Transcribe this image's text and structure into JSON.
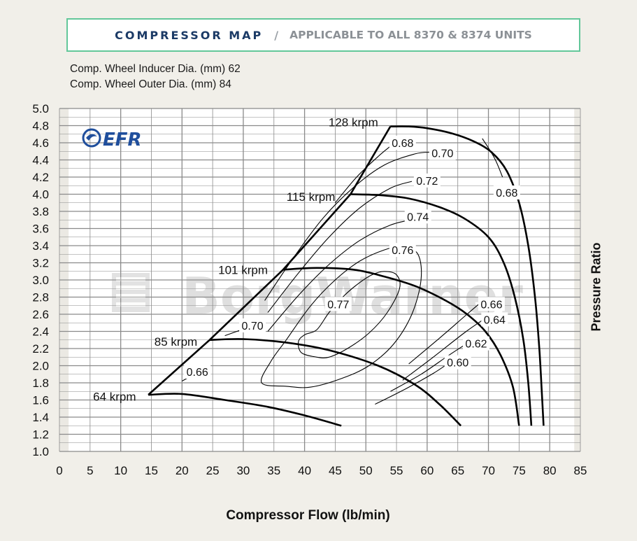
{
  "header": {
    "title": "COMPRESSOR MAP",
    "separator": "/",
    "subtitle": "APPLICABLE TO ALL 8370 & 8374 UNITS"
  },
  "specs": {
    "inducer": "Comp. Wheel Inducer Dia. (mm) 62",
    "outer": "Comp. Wheel Outer Dia. (mm) 84"
  },
  "logo": {
    "brand": "EFR",
    "watermark": "BorgWarner"
  },
  "colors": {
    "background": "#f1efe9",
    "header_border": "#63c79a",
    "title_blue": "#1b3a66",
    "logo_blue": "#1f4e9c",
    "grid": "#8a8a8a",
    "curve": "#000000"
  },
  "chart_data": {
    "type": "line",
    "xlabel": "Compressor Flow (lb/min)",
    "ylabel": "Pressure Ratio",
    "xlim": [
      0,
      85
    ],
    "ylim": [
      1.0,
      5.0
    ],
    "grid": true,
    "x_ticks": [
      0,
      5,
      10,
      15,
      20,
      25,
      30,
      35,
      40,
      45,
      50,
      55,
      60,
      65,
      70,
      75,
      80,
      85
    ],
    "y_ticks": [
      "1.0",
      "1.2",
      "1.4",
      "1.6",
      "1.8",
      "2.0",
      "2.2",
      "2.4",
      "2.6",
      "2.8",
      "3.0",
      "3.2",
      "3.4",
      "3.6",
      "3.8",
      "4.0",
      "4.2",
      "4.4",
      "4.6",
      "4.8",
      "5.0"
    ],
    "surge_line": [
      [
        14.5,
        1.66
      ],
      [
        24.5,
        2.3
      ],
      [
        36.5,
        3.12
      ],
      [
        47.5,
        4.0
      ],
      [
        54,
        4.79
      ]
    ],
    "speed_lines": [
      {
        "name": "64 krpm",
        "label_at": [
          12.5,
          1.64
        ],
        "points": [
          [
            14.5,
            1.66
          ],
          [
            20,
            1.67
          ],
          [
            27,
            1.6
          ],
          [
            34,
            1.52
          ],
          [
            40,
            1.42
          ],
          [
            46,
            1.3
          ]
        ]
      },
      {
        "name": "85 krpm",
        "label_at": [
          22.5,
          2.28
        ],
        "points": [
          [
            24.5,
            2.3
          ],
          [
            30,
            2.31
          ],
          [
            37,
            2.27
          ],
          [
            44,
            2.18
          ],
          [
            52,
            2.0
          ],
          [
            58,
            1.78
          ],
          [
            62,
            1.55
          ],
          [
            65.5,
            1.3
          ]
        ]
      },
      {
        "name": "101 krpm",
        "label_at": [
          34,
          3.12
        ],
        "points": [
          [
            36.5,
            3.12
          ],
          [
            42,
            3.14
          ],
          [
            48,
            3.12
          ],
          [
            53,
            3.04
          ],
          [
            58,
            2.93
          ],
          [
            63,
            2.76
          ],
          [
            66.5,
            2.6
          ],
          [
            69.5,
            2.4
          ],
          [
            72,
            2.12
          ],
          [
            74,
            1.75
          ],
          [
            75,
            1.3
          ]
        ]
      },
      {
        "name": "115 krpm",
        "label_at": [
          45,
          3.97
        ],
        "points": [
          [
            47.5,
            4.0
          ],
          [
            52,
            3.99
          ],
          [
            57,
            3.95
          ],
          [
            62,
            3.85
          ],
          [
            66,
            3.72
          ],
          [
            70,
            3.5
          ],
          [
            72.5,
            3.2
          ],
          [
            74.3,
            2.8
          ],
          [
            75.7,
            2.3
          ],
          [
            76.5,
            1.8
          ],
          [
            77,
            1.3
          ]
        ]
      },
      {
        "name": "128 krpm",
        "label_at": [
          52,
          4.84
        ],
        "points": [
          [
            54,
            4.79
          ],
          [
            57,
            4.79
          ],
          [
            60,
            4.77
          ],
          [
            64,
            4.71
          ],
          [
            67.5,
            4.62
          ],
          [
            70.5,
            4.49
          ],
          [
            73,
            4.27
          ],
          [
            75,
            3.9
          ],
          [
            76.5,
            3.4
          ],
          [
            77.6,
            2.8
          ],
          [
            78.3,
            2.2
          ],
          [
            78.7,
            1.7
          ],
          [
            79,
            1.3
          ]
        ]
      }
    ],
    "efficiency_islands": [
      {
        "label": "0.77",
        "label_at": [
          45.5,
          2.72
        ],
        "points": [
          [
            42,
            2.42
          ],
          [
            44,
            2.62
          ],
          [
            46.5,
            2.82
          ],
          [
            49,
            2.97
          ],
          [
            51,
            3.06
          ],
          [
            53,
            3.1
          ],
          [
            55,
            3.06
          ],
          [
            55.5,
            2.9
          ],
          [
            53.5,
            2.62
          ],
          [
            50.5,
            2.38
          ],
          [
            47,
            2.2
          ],
          [
            44,
            2.1
          ],
          [
            42,
            2.1
          ],
          [
            39.5,
            2.15
          ],
          [
            39,
            2.28
          ],
          [
            40,
            2.36
          ]
        ]
      },
      {
        "label": "0.76",
        "label_at": [
          56,
          3.35
        ],
        "points": [
          [
            37,
            2.3
          ],
          [
            41,
            2.7
          ],
          [
            45,
            3.0
          ],
          [
            49,
            3.22
          ],
          [
            53,
            3.35
          ],
          [
            56,
            3.39
          ],
          [
            58.5,
            3.3
          ],
          [
            59,
            3.0
          ],
          [
            57.5,
            2.6
          ],
          [
            54.5,
            2.25
          ],
          [
            50.5,
            2.0
          ],
          [
            46,
            1.85
          ],
          [
            41,
            1.75
          ],
          [
            37,
            1.76
          ],
          [
            33,
            1.8
          ],
          [
            34.5,
            2.05
          ]
        ]
      }
    ],
    "efficiency_lines": [
      {
        "label": "0.74",
        "label_at": [
          58.5,
          3.74
        ],
        "points": [
          [
            34,
            2.4
          ],
          [
            39,
            2.82
          ],
          [
            44,
            3.18
          ],
          [
            49,
            3.46
          ],
          [
            54,
            3.64
          ],
          [
            58,
            3.71
          ]
        ]
      },
      {
        "label": "0.72",
        "label_at": [
          60,
          4.16
        ],
        "points": [
          [
            34,
            2.62
          ],
          [
            39,
            3.08
          ],
          [
            44,
            3.5
          ],
          [
            49,
            3.84
          ],
          [
            54,
            4.07
          ],
          [
            57.5,
            4.15
          ]
        ]
      },
      {
        "label": "0.70",
        "label_at": [
          31.5,
          2.47
        ],
        "points": [
          [
            27,
            2.35
          ],
          [
            30.5,
            2.44
          ]
        ]
      },
      {
        "label": "0.70",
        "label_at": [
          62.5,
          4.48
        ],
        "points": [
          [
            33.5,
            2.76
          ],
          [
            38,
            3.24
          ],
          [
            43,
            3.72
          ],
          [
            48,
            4.08
          ],
          [
            53,
            4.34
          ],
          [
            58,
            4.47
          ],
          [
            60.5,
            4.49
          ]
        ]
      },
      {
        "label": "0.68",
        "label_at": [
          56,
          4.6
        ],
        "points": [
          [
            45,
            3.9
          ],
          [
            48.5,
            4.2
          ],
          [
            52,
            4.44
          ],
          [
            54,
            4.56
          ]
        ]
      },
      {
        "label": "0.68",
        "label_at": [
          73,
          4.02
        ],
        "points": [
          [
            69,
            4.65
          ],
          [
            71,
            4.42
          ],
          [
            72.3,
            4.2
          ]
        ]
      },
      {
        "label": "0.66",
        "label_at": [
          22.5,
          1.93
        ],
        "points": [
          [
            20,
            1.82
          ],
          [
            21.5,
            1.88
          ]
        ]
      },
      {
        "label": "0.66",
        "label_at": [
          70.5,
          2.72
        ],
        "points": [
          [
            57,
            2.02
          ],
          [
            62,
            2.32
          ],
          [
            66.5,
            2.6
          ],
          [
            68.8,
            2.74
          ]
        ]
      },
      {
        "label": "0.64",
        "label_at": [
          71,
          2.54
        ],
        "points": [
          [
            56,
            1.83
          ],
          [
            61,
            2.1
          ],
          [
            66,
            2.38
          ],
          [
            69,
            2.53
          ]
        ]
      },
      {
        "label": "0.62",
        "label_at": [
          68,
          2.26
        ],
        "points": [
          [
            54,
            1.7
          ],
          [
            59,
            1.9
          ],
          [
            63.5,
            2.12
          ],
          [
            66.3,
            2.25
          ]
        ]
      },
      {
        "label": "0.60",
        "label_at": [
          65,
          2.04
        ],
        "points": [
          [
            51.5,
            1.55
          ],
          [
            56.5,
            1.73
          ],
          [
            61,
            1.91
          ],
          [
            63.5,
            2.03
          ]
        ]
      }
    ]
  }
}
